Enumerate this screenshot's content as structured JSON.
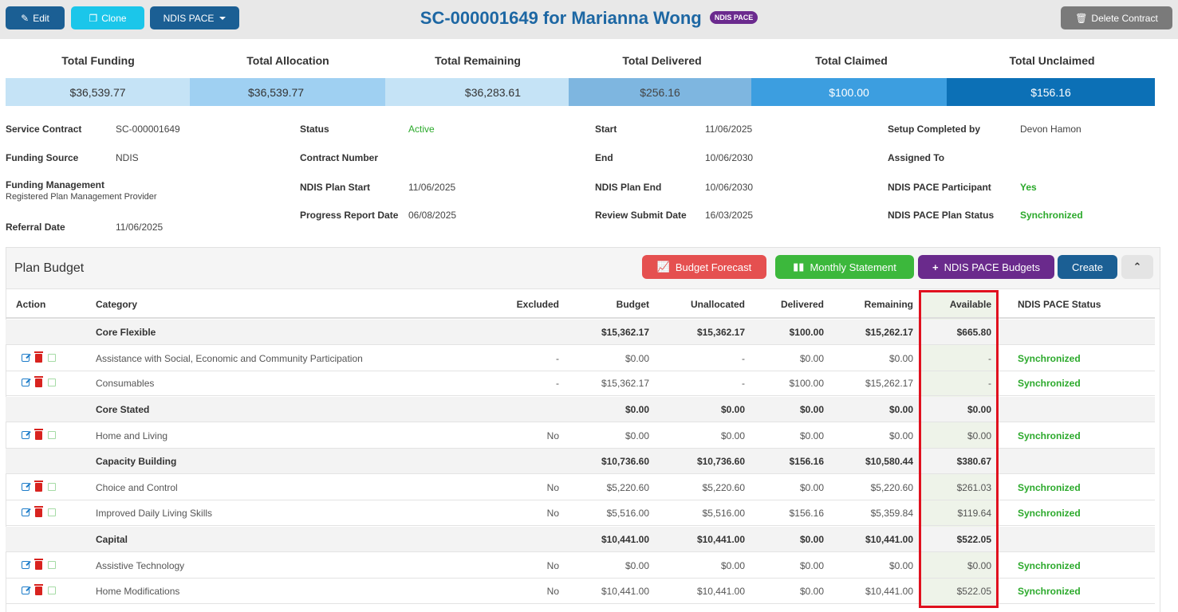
{
  "toolbar": {
    "edit_label": "Edit",
    "clone_label": "Clone",
    "pace_label": "NDIS PACE",
    "delete_label": "Delete Contract"
  },
  "header": {
    "title": "SC-000001649 for Marianna Wong",
    "badge": "NDIS PACE"
  },
  "totals": [
    {
      "label": "Total Funding",
      "value": "$36,539.77",
      "color": "#c5e3f6"
    },
    {
      "label": "Total Allocation",
      "value": "$36,539.77",
      "color": "#9fd0f2"
    },
    {
      "label": "Total Remaining",
      "value": "$36,283.61",
      "color": "#c5e3f6"
    },
    {
      "label": "Total Delivered",
      "value": "$256.16",
      "color": "#7eb6e0"
    },
    {
      "label": "Total Claimed",
      "value": "$100.00",
      "color": "#3c9ee0"
    },
    {
      "label": "Total Unclaimed",
      "value": "$156.16",
      "color": "#0c70b6"
    }
  ],
  "info": {
    "service_contract_label": "Service Contract",
    "service_contract": "SC-000001649",
    "funding_source_label": "Funding Source",
    "funding_source": "NDIS",
    "funding_management_label": "Funding Management",
    "funding_management": "Registered Plan Management Provider",
    "referral_date_label": "Referral Date",
    "referral_date": "11/06/2025",
    "status_label": "Status",
    "status": "Active",
    "contract_number_label": "Contract Number",
    "contract_number": "",
    "ndis_plan_start_label": "NDIS Plan Start",
    "ndis_plan_start": "11/06/2025",
    "progress_report_date_label": "Progress Report Date",
    "progress_report_date": "06/08/2025",
    "start_label": "Start",
    "start": "11/06/2025",
    "end_label": "End",
    "end": "10/06/2030",
    "ndis_plan_end_label": "NDIS Plan End",
    "ndis_plan_end": "10/06/2030",
    "review_submit_date_label": "Review Submit Date",
    "review_submit_date": "16/03/2025",
    "setup_completed_by_label": "Setup Completed by",
    "setup_completed_by": "Devon Hamon",
    "assigned_to_label": "Assigned To",
    "assigned_to": "",
    "pace_participant_label": "NDIS PACE Participant",
    "pace_participant": "Yes",
    "pace_plan_status_label": "NDIS PACE Plan Status",
    "pace_plan_status": "Synchronized"
  },
  "plan_budget": {
    "title": "Plan Budget",
    "buttons": {
      "forecast": "Budget Forecast",
      "monthly": "Monthly Statement",
      "budgets": "NDIS PACE Budgets",
      "create": "Create"
    },
    "columns": {
      "action": "Action",
      "category": "Category",
      "excluded": "Excluded",
      "budget": "Budget",
      "unallocated": "Unallocated",
      "delivered": "Delivered",
      "remaining": "Remaining",
      "available": "Available",
      "status": "NDIS PACE Status"
    },
    "rows": [
      {
        "type": "group",
        "category": "Core Flexible",
        "excluded": "",
        "budget": "$15,362.17",
        "unallocated": "$15,362.17",
        "delivered": "$100.00",
        "remaining": "$15,262.17",
        "available": "$665.80",
        "status": ""
      },
      {
        "type": "item",
        "category": "Assistance with Social, Economic and Community Participation",
        "excluded": "-",
        "budget": "$0.00",
        "unallocated": "-",
        "delivered": "$0.00",
        "remaining": "$0.00",
        "available": "-",
        "status": "Synchronized"
      },
      {
        "type": "item",
        "category": "Consumables",
        "excluded": "-",
        "budget": "$15,362.17",
        "unallocated": "-",
        "delivered": "$100.00",
        "remaining": "$15,262.17",
        "available": "-",
        "status": "Synchronized"
      },
      {
        "type": "group",
        "category": "Core Stated",
        "excluded": "",
        "budget": "$0.00",
        "unallocated": "$0.00",
        "delivered": "$0.00",
        "remaining": "$0.00",
        "available": "$0.00",
        "status": ""
      },
      {
        "type": "item",
        "category": "Home and Living",
        "excluded": "No",
        "budget": "$0.00",
        "unallocated": "$0.00",
        "delivered": "$0.00",
        "remaining": "$0.00",
        "available": "$0.00",
        "status": "Synchronized"
      },
      {
        "type": "group",
        "category": "Capacity Building",
        "excluded": "",
        "budget": "$10,736.60",
        "unallocated": "$10,736.60",
        "delivered": "$156.16",
        "remaining": "$10,580.44",
        "available": "$380.67",
        "status": ""
      },
      {
        "type": "item",
        "category": "Choice and Control",
        "excluded": "No",
        "budget": "$5,220.60",
        "unallocated": "$5,220.60",
        "delivered": "$0.00",
        "remaining": "$5,220.60",
        "available": "$261.03",
        "status": "Synchronized"
      },
      {
        "type": "item",
        "category": "Improved Daily Living Skills",
        "excluded": "No",
        "budget": "$5,516.00",
        "unallocated": "$5,516.00",
        "delivered": "$156.16",
        "remaining": "$5,359.84",
        "available": "$119.64",
        "status": "Synchronized"
      },
      {
        "type": "group",
        "category": "Capital",
        "excluded": "",
        "budget": "$10,441.00",
        "unallocated": "$10,441.00",
        "delivered": "$0.00",
        "remaining": "$10,441.00",
        "available": "$522.05",
        "status": ""
      },
      {
        "type": "item",
        "category": "Assistive Technology",
        "excluded": "No",
        "budget": "$0.00",
        "unallocated": "$0.00",
        "delivered": "$0.00",
        "remaining": "$0.00",
        "available": "$0.00",
        "status": "Synchronized"
      },
      {
        "type": "item",
        "category": "Home Modifications",
        "excluded": "No",
        "budget": "$10,441.00",
        "unallocated": "$10,441.00",
        "delivered": "$0.00",
        "remaining": "$10,441.00",
        "available": "$522.05",
        "status": "Synchronized"
      }
    ]
  }
}
